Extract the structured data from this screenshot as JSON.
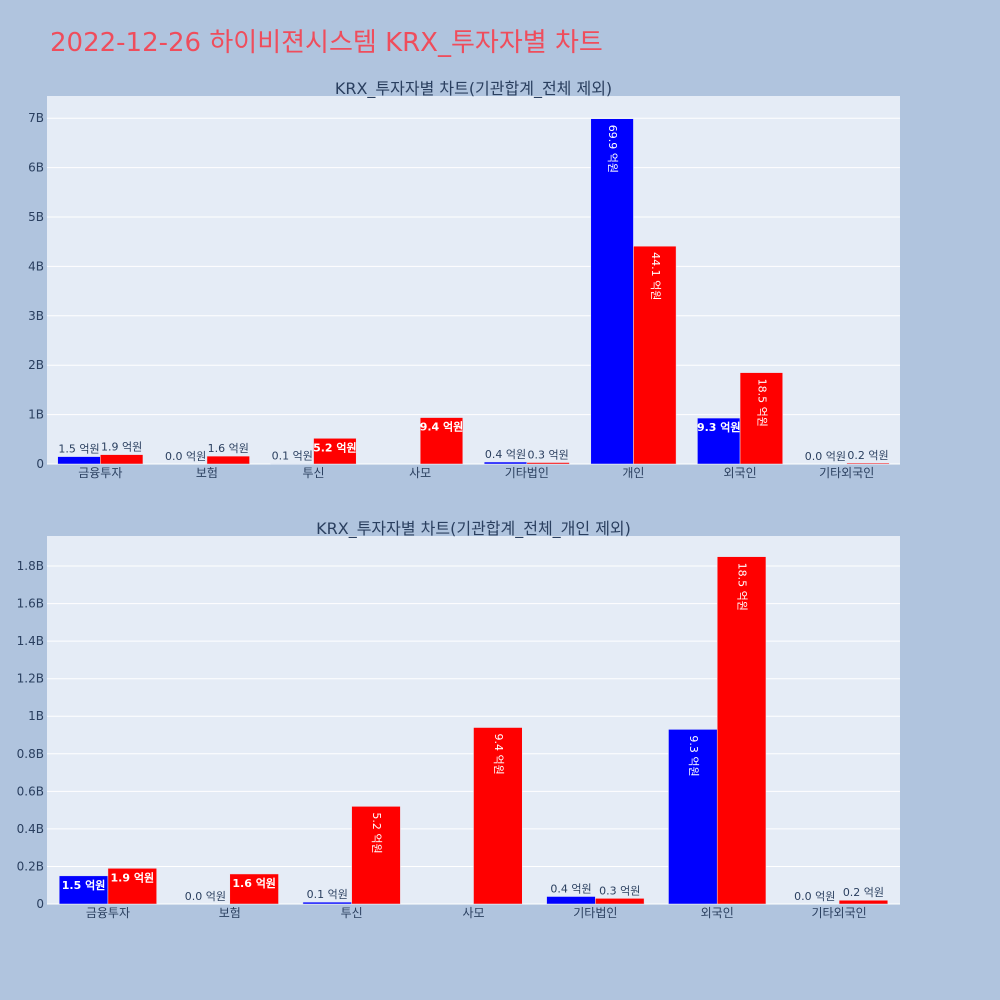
{
  "page_title": "2022-12-26 하이비젼시스템 KRX_투자자별 차트",
  "chart_data": [
    {
      "type": "bar",
      "title": "KRX_투자자별 차트(기관합계_전체 제외)",
      "categories": [
        "금융투자",
        "보험",
        "투신",
        "사모",
        "기타법인",
        "개인",
        "외국인",
        "기타외국인"
      ],
      "series": [
        {
          "color": "#0000ff",
          "values": [
            150000000,
            0,
            10000000,
            0,
            40000000,
            6990000000,
            930000000,
            0
          ],
          "labels": [
            "1.5 억원",
            "0.0 억원",
            "0.1 억원",
            "",
            "0.4 억원",
            "69.9 억원",
            "9.3 억원",
            "0.0 억원"
          ]
        },
        {
          "color": "#ff0000",
          "values": [
            190000000,
            160000000,
            520000000,
            940000000,
            30000000,
            4410000000,
            1850000000,
            20000000
          ],
          "labels": [
            "1.9 억원",
            "1.6 억원",
            "5.2 억원",
            "9.4 억원",
            "0.3 억원",
            "44.1 억원",
            "18.5 억원",
            "0.2 억원"
          ]
        }
      ],
      "yticks": [
        0,
        1000000000,
        2000000000,
        3000000000,
        4000000000,
        5000000000,
        6000000000,
        7000000000
      ],
      "ytick_labels": [
        "0",
        "1B",
        "2B",
        "3B",
        "4B",
        "5B",
        "6B",
        "7B"
      ],
      "ylim": [
        0,
        7450000000
      ],
      "grid": true
    },
    {
      "type": "bar",
      "title": "KRX_투자자별 차트(기관합계_전체_개인 제외)",
      "categories": [
        "금융투자",
        "보험",
        "투신",
        "사모",
        "기타법인",
        "외국인",
        "기타외국인"
      ],
      "series": [
        {
          "color": "#0000ff",
          "values": [
            150000000,
            0,
            10000000,
            0,
            40000000,
            930000000,
            0
          ],
          "labels": [
            "1.5 억원",
            "0.0 억원",
            "0.1 억원",
            "",
            "0.4 억원",
            "9.3 억원",
            "0.0 억원"
          ]
        },
        {
          "color": "#ff0000",
          "values": [
            190000000,
            160000000,
            520000000,
            940000000,
            30000000,
            1850000000,
            20000000
          ],
          "labels": [
            "1.9 억원",
            "1.6 억원",
            "5.2 억원",
            "9.4 억원",
            "0.3 억원",
            "18.5 억원",
            "0.2 억원"
          ]
        }
      ],
      "yticks": [
        0,
        200000000,
        400000000,
        600000000,
        800000000,
        1000000000,
        1200000000,
        1400000000,
        1600000000,
        1800000000
      ],
      "ytick_labels": [
        "0",
        "0.2B",
        "0.4B",
        "0.6B",
        "0.8B",
        "1B",
        "1.2B",
        "1.4B",
        "1.6B",
        "1.8B"
      ],
      "ylim": [
        0,
        1960000000
      ],
      "grid": true
    }
  ]
}
